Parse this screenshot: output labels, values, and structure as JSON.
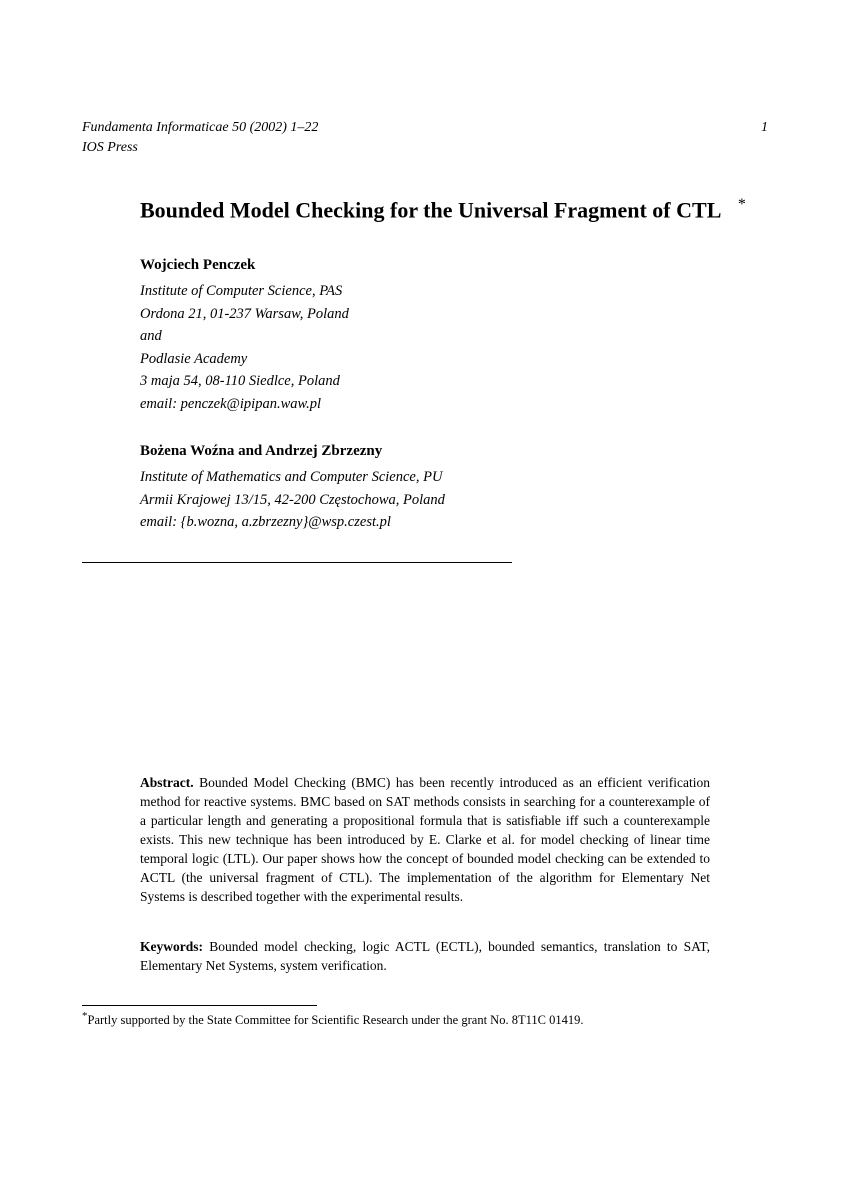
{
  "header": {
    "journal": "Fundamenta Informaticae 50 (2002) 1–22",
    "page_number": "1",
    "publisher": "IOS Press"
  },
  "title": {
    "main": "Bounded Model Checking for the Universal Fragment of ",
    "logic": "CTL",
    "marker": "*"
  },
  "authors": [
    {
      "name": "Wojciech Penczek",
      "lines": [
        "Institute of Computer Science, PAS",
        "Ordona 21, 01-237 Warsaw, Poland",
        "and",
        "Podlasie Academy",
        "3 maja 54, 08-110 Siedlce, Poland",
        "email: penczek@ipipan.waw.pl"
      ]
    },
    {
      "name": "Bożena Woźna and Andrzej Zbrzezny",
      "lines": [
        "Institute of Mathematics and Computer Science, PU",
        "Armii Krajowej 13/15, 42-200 Częstochowa, Poland",
        "email: {b.wozna, a.zbrzezny}@wsp.czest.pl"
      ]
    }
  ],
  "abstract": {
    "label": "Abstract.",
    "text": "Bounded Model Checking (BMC) has been recently introduced as an efficient verification method for reactive systems. BMC based on SAT methods consists in searching for a counterexample of a particular length and generating a propositional formula that is satisfiable iff such a counterexample exists. This new technique has been introduced by E. Clarke et al. for model checking of linear time temporal logic (LTL). Our paper shows how the concept of bounded model checking can be extended to ACTL (the universal fragment of CTL). The implementation of the algorithm for Elementary Net Systems is described together with the experimental results."
  },
  "keywords": {
    "label": "Keywords:",
    "text": "Bounded model checking, logic ACTL (ECTL), bounded semantics, translation to SAT, Elementary Net Systems, system verification."
  },
  "footnote": {
    "marker": "*",
    "text": "Partly supported by the State Committee for Scientific Research under the grant No. 8T11C 01419."
  },
  "style": {
    "text_color": "#000000",
    "background_color": "#ffffff",
    "title_fontsize": 22,
    "body_fontsize": 14,
    "abstract_fontsize": 13.5,
    "footnote_fontsize": 12.5,
    "font_family": "Times New Roman"
  }
}
